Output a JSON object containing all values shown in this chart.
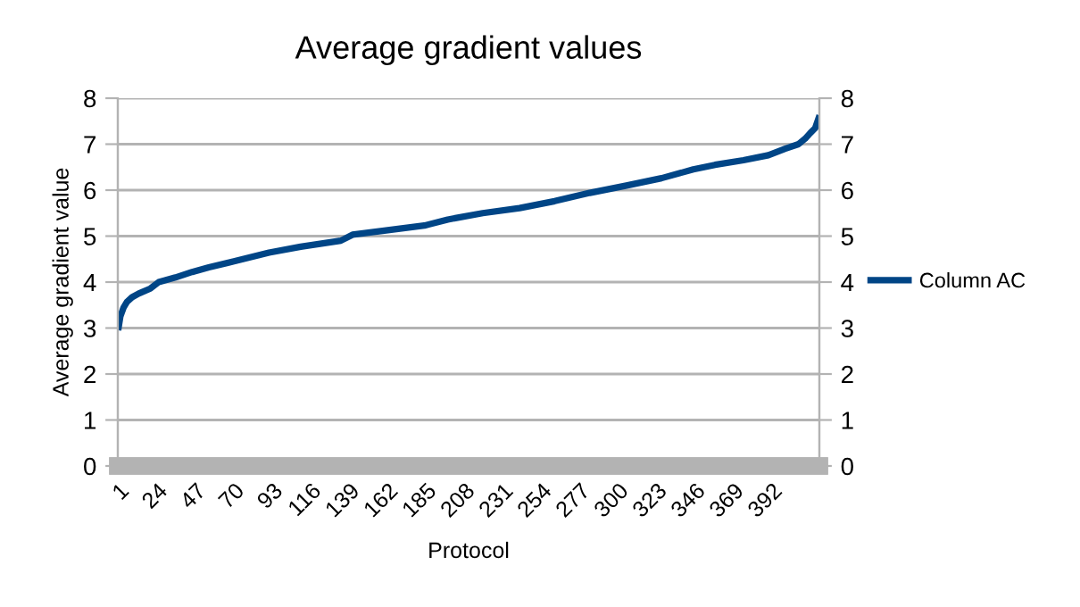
{
  "chart_data": {
    "type": "line",
    "title": "Average gradient values",
    "xlabel": "Protocol",
    "ylabel": "Average gradient value",
    "xlim": [
      0.5,
      420.5
    ],
    "xticks": [
      1,
      24,
      47,
      70,
      93,
      116,
      139,
      162,
      185,
      208,
      231,
      254,
      277,
      300,
      323,
      346,
      369,
      392
    ],
    "ylim": [
      0,
      8
    ],
    "yticks": [
      0,
      1,
      2,
      3,
      4,
      5,
      6,
      7,
      8
    ],
    "y2lim": [
      0,
      8
    ],
    "y2ticks": [
      0,
      1,
      2,
      3,
      4,
      5,
      6,
      7,
      8
    ],
    "grid": "y",
    "legend": "right",
    "line_style": "solid",
    "marker": "none",
    "series": [
      {
        "name": "Column AC",
        "color": "#004586",
        "x": [
          1,
          2,
          4,
          6,
          9,
          13,
          20,
          25,
          35,
          45,
          55,
          70,
          91,
          110,
          134,
          141,
          160,
          184,
          198,
          219,
          241,
          262,
          283,
          305,
          326,
          345,
          358,
          375,
          390,
          400,
          408,
          412,
          415,
          418,
          420
        ],
        "values": [
          3.02,
          3.25,
          3.45,
          3.57,
          3.67,
          3.75,
          3.86,
          4.0,
          4.1,
          4.22,
          4.32,
          4.45,
          4.64,
          4.77,
          4.9,
          5.03,
          5.12,
          5.23,
          5.36,
          5.5,
          5.61,
          5.76,
          5.94,
          6.1,
          6.26,
          6.45,
          6.55,
          6.65,
          6.76,
          6.9,
          7.0,
          7.12,
          7.24,
          7.35,
          7.56
        ]
      }
    ]
  }
}
